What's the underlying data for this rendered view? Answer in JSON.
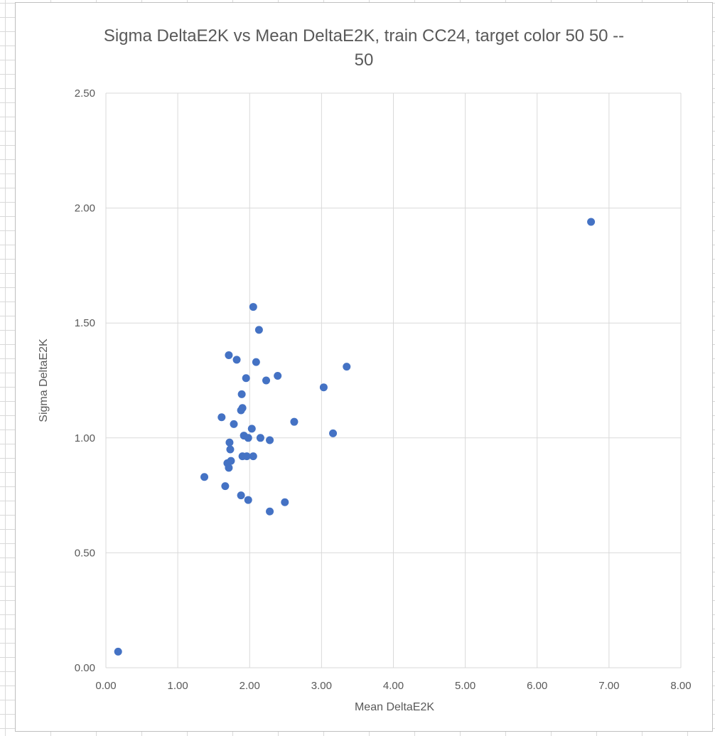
{
  "chart_data": {
    "type": "scatter",
    "title_lines": [
      "Sigma DeltaE2K vs Mean DeltaE2K, train CC24, target color 50 50 --",
      "50"
    ],
    "xlabel": "Mean DeltaE2K",
    "ylabel": "Sigma DeltaE2K",
    "xlim": [
      0,
      8
    ],
    "ylim": [
      0,
      2.5
    ],
    "x_ticks": [
      "0.00",
      "1.00",
      "2.00",
      "3.00",
      "4.00",
      "5.00",
      "6.00",
      "7.00",
      "8.00"
    ],
    "y_ticks": [
      "0.00",
      "0.50",
      "1.00",
      "1.50",
      "2.00",
      "2.50"
    ],
    "grid": true,
    "marker_color": "#4472C4",
    "gridline_color": "#d9d9d9",
    "series": [
      {
        "points": [
          [
            0.17,
            0.07
          ],
          [
            1.37,
            0.83
          ],
          [
            1.61,
            1.09
          ],
          [
            1.66,
            0.79
          ],
          [
            1.69,
            0.89
          ],
          [
            1.71,
            0.87
          ],
          [
            1.72,
            0.98
          ],
          [
            1.73,
            0.95
          ],
          [
            1.74,
            0.9
          ],
          [
            1.71,
            1.36
          ],
          [
            1.78,
            1.06
          ],
          [
            1.82,
            1.34
          ],
          [
            1.88,
            1.12
          ],
          [
            1.88,
            0.75
          ],
          [
            1.89,
            1.19
          ],
          [
            1.9,
            1.13
          ],
          [
            1.9,
            0.92
          ],
          [
            1.92,
            1.01
          ],
          [
            1.95,
            1.26
          ],
          [
            1.96,
            0.92
          ],
          [
            1.98,
            1.0
          ],
          [
            1.98,
            0.73
          ],
          [
            2.03,
            1.04
          ],
          [
            2.05,
            0.92
          ],
          [
            2.05,
            1.57
          ],
          [
            2.09,
            1.33
          ],
          [
            2.13,
            1.47
          ],
          [
            2.15,
            1.0
          ],
          [
            2.23,
            1.25
          ],
          [
            2.28,
            0.99
          ],
          [
            2.28,
            0.68
          ],
          [
            2.39,
            1.27
          ],
          [
            2.49,
            0.72
          ],
          [
            2.62,
            1.07
          ],
          [
            3.03,
            1.22
          ],
          [
            3.16,
            1.02
          ],
          [
            3.35,
            1.31
          ],
          [
            6.75,
            1.94
          ]
        ]
      }
    ]
  }
}
